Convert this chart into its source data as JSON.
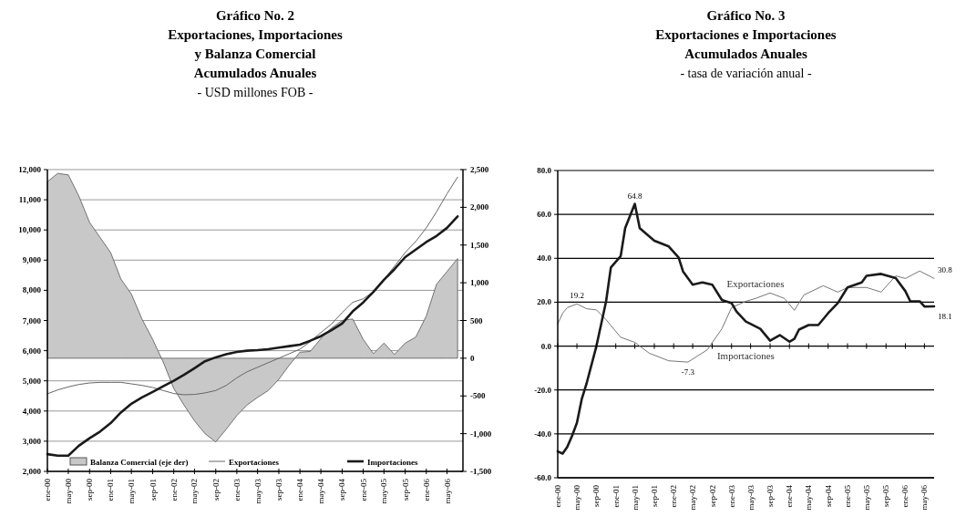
{
  "chart_data": [
    {
      "type": "line",
      "title": "Gráfico No. 2\nExportaciones, Importaciones\ny Balanza Comercial\nAcumulados Anuales",
      "subtitle": "- USD millones FOB -",
      "x": [
        "2000-01",
        "2000-03",
        "2000-05",
        "2000-07",
        "2000-09",
        "2000-11",
        "2001-01",
        "2001-03",
        "2001-05",
        "2001-07",
        "2001-09",
        "2001-11",
        "2002-01",
        "2002-03",
        "2002-05",
        "2002-07",
        "2002-09",
        "2002-11",
        "2003-01",
        "2003-03",
        "2003-05",
        "2003-07",
        "2003-09",
        "2003-11",
        "2004-01",
        "2004-03",
        "2004-05",
        "2004-07",
        "2004-09",
        "2004-11",
        "2005-01",
        "2005-03",
        "2005-05",
        "2005-07",
        "2005-09",
        "2005-11",
        "2006-01",
        "2006-03",
        "2006-05",
        "2006-07"
      ],
      "xlim": [
        "2000-01",
        "2006-08"
      ],
      "xticks": [
        {
          "value": "2000-01",
          "label": "ene-00"
        },
        {
          "value": "2000-05",
          "label": "may-00"
        },
        {
          "value": "2000-09",
          "label": "sep-00"
        },
        {
          "value": "2001-01",
          "label": "ene-01"
        },
        {
          "value": "2001-05",
          "label": "may-01"
        },
        {
          "value": "2001-09",
          "label": "sep-01"
        },
        {
          "value": "2002-01",
          "label": "ene-02"
        },
        {
          "value": "2002-05",
          "label": "may-02"
        },
        {
          "value": "2002-09",
          "label": "sep-02"
        },
        {
          "value": "2003-01",
          "label": "ene-03"
        },
        {
          "value": "2003-05",
          "label": "may-03"
        },
        {
          "value": "2003-09",
          "label": "sep-03"
        },
        {
          "value": "2004-01",
          "label": "ene-04"
        },
        {
          "value": "2004-05",
          "label": "may-04"
        },
        {
          "value": "2004-09",
          "label": "sep-04"
        },
        {
          "value": "2005-01",
          "label": "ene-05"
        },
        {
          "value": "2005-05",
          "label": "may-05"
        },
        {
          "value": "2005-09",
          "label": "sep-05"
        },
        {
          "value": "2006-01",
          "label": "ene-06"
        },
        {
          "value": "2006-05",
          "label": "may-06"
        }
      ],
      "ylim": [
        2000,
        12000
      ],
      "yticks": [
        {
          "value": 2000,
          "label": "2,000"
        },
        {
          "value": 3000,
          "label": "3,000"
        },
        {
          "value": 4000,
          "label": "4,000"
        },
        {
          "value": 5000,
          "label": "5,000"
        },
        {
          "value": 6000,
          "label": "6,000"
        },
        {
          "value": 7000,
          "label": "7,000"
        },
        {
          "value": 8000,
          "label": "8,000"
        },
        {
          "value": 9000,
          "label": "9,000"
        },
        {
          "value": 10000,
          "label": "10,000"
        },
        {
          "value": 11000,
          "label": "11,000"
        },
        {
          "value": 12000,
          "label": "12,000"
        }
      ],
      "y2lim": [
        -1500,
        2500
      ],
      "y2ticks": [
        {
          "value": -1500,
          "label": "-1,500"
        },
        {
          "value": -1000,
          "label": "-1,000"
        },
        -500,
        0,
        500,
        {
          "value": 1000,
          "label": "1,000"
        },
        {
          "value": 1500,
          "label": "1,500"
        },
        {
          "value": 2000,
          "label": "2,000"
        },
        {
          "value": 2500,
          "label": "2,500"
        }
      ],
      "grid": "y",
      "legend": "bottom",
      "series": [
        {
          "name": "Balanza Comercial (eje der)",
          "type": "area",
          "axis": "y2",
          "color": "#c8c8c8",
          "values": [
            2340,
            2450,
            2430,
            2150,
            1800,
            1600,
            1400,
            1050,
            850,
            520,
            250,
            -50,
            -400,
            -620,
            -830,
            -1000,
            -1110,
            -940,
            -760,
            -620,
            -520,
            -430,
            -280,
            -90,
            80,
            90,
            260,
            400,
            500,
            520,
            250,
            60,
            200,
            50,
            200,
            280,
            560,
            980,
            1150,
            1320
          ]
        },
        {
          "name": "Exportaciones",
          "color": "#666666",
          "values": [
            4570,
            4700,
            4800,
            4880,
            4930,
            4950,
            4950,
            4950,
            4900,
            4850,
            4780,
            4680,
            4580,
            4540,
            4550,
            4600,
            4680,
            4850,
            5100,
            5300,
            5450,
            5600,
            5750,
            5900,
            6050,
            6300,
            6600,
            6880,
            7260,
            7600,
            7720,
            7950,
            8350,
            8800,
            9250,
            9620,
            10070,
            10600,
            11200,
            11750
          ]
        },
        {
          "name": "Importaciones",
          "color": "#1a1a1a",
          "values": [
            2570,
            2520,
            2520,
            2850,
            3100,
            3320,
            3600,
            3950,
            4240,
            4450,
            4630,
            4820,
            5000,
            5200,
            5420,
            5650,
            5780,
            5880,
            5960,
            6000,
            6020,
            6050,
            6100,
            6150,
            6200,
            6330,
            6480,
            6680,
            6900,
            7300,
            7600,
            7950,
            8350,
            8700,
            9100,
            9350,
            9600,
            9800,
            10070,
            10450
          ]
        }
      ]
    },
    {
      "type": "line",
      "title": "Gráfico No. 3\nExportaciones e Importaciones\nAcumulados Anuales",
      "subtitle": "- tasa de variación anual -",
      "xlim": [
        "2000-01",
        "2006-07"
      ],
      "xticks": [
        {
          "value": "2000-01",
          "label": "ene-00"
        },
        {
          "value": "2000-05",
          "label": "may-00"
        },
        {
          "value": "2000-09",
          "label": "sep-00"
        },
        {
          "value": "2001-01",
          "label": "ene-01"
        },
        {
          "value": "2001-05",
          "label": "may-01"
        },
        {
          "value": "2001-09",
          "label": "sep-01"
        },
        {
          "value": "2002-01",
          "label": "ene-02"
        },
        {
          "value": "2002-05",
          "label": "may-02"
        },
        {
          "value": "2002-09",
          "label": "sep-02"
        },
        {
          "value": "2003-01",
          "label": "ene-03"
        },
        {
          "value": "2003-05",
          "label": "may-03"
        },
        {
          "value": "2003-09",
          "label": "sep-03"
        },
        {
          "value": "2004-01",
          "label": "ene-04"
        },
        {
          "value": "2004-05",
          "label": "may-04"
        },
        {
          "value": "2004-09",
          "label": "sep-04"
        },
        {
          "value": "2005-01",
          "label": "ene-05"
        },
        {
          "value": "2005-05",
          "label": "may-05"
        },
        {
          "value": "2005-09",
          "label": "sep-05"
        },
        {
          "value": "2006-01",
          "label": "ene-06"
        },
        {
          "value": "2006-05",
          "label": "may-06"
        }
      ],
      "ylim": [
        -60,
        80
      ],
      "yticks": [
        {
          "value": -60,
          "label": "-60.0"
        },
        {
          "value": -40,
          "label": "-40.0"
        },
        {
          "value": -20,
          "label": "-20.0"
        },
        {
          "value": 0,
          "label": "0.0"
        },
        {
          "value": 20,
          "label": "20.0"
        },
        {
          "value": 40,
          "label": "40.0"
        },
        {
          "value": 60,
          "label": "60.0"
        },
        {
          "value": 80,
          "label": "80.0"
        }
      ],
      "grid": "y",
      "series": [
        {
          "name": "Exportaciones",
          "color": "#777777",
          "x": [
            "2000-01",
            "2000-02",
            "2000-03",
            "2000-05",
            "2000-07",
            "2000-09",
            "2000-11",
            "2001-02",
            "2001-05",
            "2001-08",
            "2001-12",
            "2002-04",
            "2002-08",
            "2002-11",
            "2003-01",
            "2003-04",
            "2003-06",
            "2003-09",
            "2003-12",
            "2004-02",
            "2004-04",
            "2004-08",
            "2004-11",
            "2005-01",
            "2005-05",
            "2005-08",
            "2005-11",
            "2006-01",
            "2006-04",
            "2006-07"
          ],
          "values": [
            10,
            15,
            17.5,
            19.2,
            17,
            16.5,
            12,
            4,
            1.7,
            -3.3,
            -6.7,
            -7.3,
            -1.7,
            7.9,
            17.5,
            20.4,
            21.7,
            24.2,
            21.7,
            16.3,
            23.3,
            27.5,
            24.6,
            26.7,
            26.7,
            24.6,
            32,
            30.8,
            34.2,
            30.8
          ]
        },
        {
          "name": "Importaciones",
          "color": "#1a1a1a",
          "x": [
            "2000-01",
            "2000-02",
            "2000-03",
            "2000-04",
            "2000-05",
            "2000-06",
            "2000-07",
            "2000-09",
            "2000-11",
            "2000-12",
            "2001-02",
            "2001-03",
            "2001-05",
            "2001-06",
            "2001-09",
            "2001-12",
            "2002-02",
            "2002-03",
            "2002-05",
            "2002-07",
            "2002-09",
            "2002-11",
            "2003-01",
            "2003-02",
            "2003-04",
            "2003-07",
            "2003-09",
            "2003-11",
            "2004-01",
            "2004-02",
            "2004-03",
            "2004-05",
            "2004-07",
            "2004-09",
            "2004-11",
            "2005-01",
            "2005-04",
            "2005-05",
            "2005-08",
            "2005-11",
            "2006-01",
            "2006-02",
            "2006-04",
            "2006-05",
            "2006-07"
          ],
          "values": [
            -48,
            -49,
            -46,
            -40.8,
            -35,
            -24,
            -17,
            0,
            20.4,
            35.8,
            41,
            53.7,
            64.8,
            53.7,
            48,
            45.4,
            40.4,
            34,
            28,
            29,
            28,
            21,
            19.6,
            15.8,
            11.2,
            7.9,
            2.5,
            5,
            2,
            3.3,
            7.5,
            9.6,
            9.6,
            15,
            19.6,
            26.7,
            29,
            32,
            32.9,
            31,
            25,
            20.4,
            20.4,
            18,
            18.1
          ]
        }
      ],
      "annotations": [
        {
          "text": "64.8",
          "x": "2001-05",
          "y": 64.8
        },
        {
          "text": "19.2",
          "x": "2000-05",
          "y": 19.2
        },
        {
          "text": "-7.3",
          "x": "2002-04",
          "y": -7.3
        },
        {
          "text": "30.8",
          "x": "2006-07",
          "y": 30.8
        },
        {
          "text": "18.1",
          "x": "2006-07",
          "y": 18.1
        }
      ]
    }
  ]
}
